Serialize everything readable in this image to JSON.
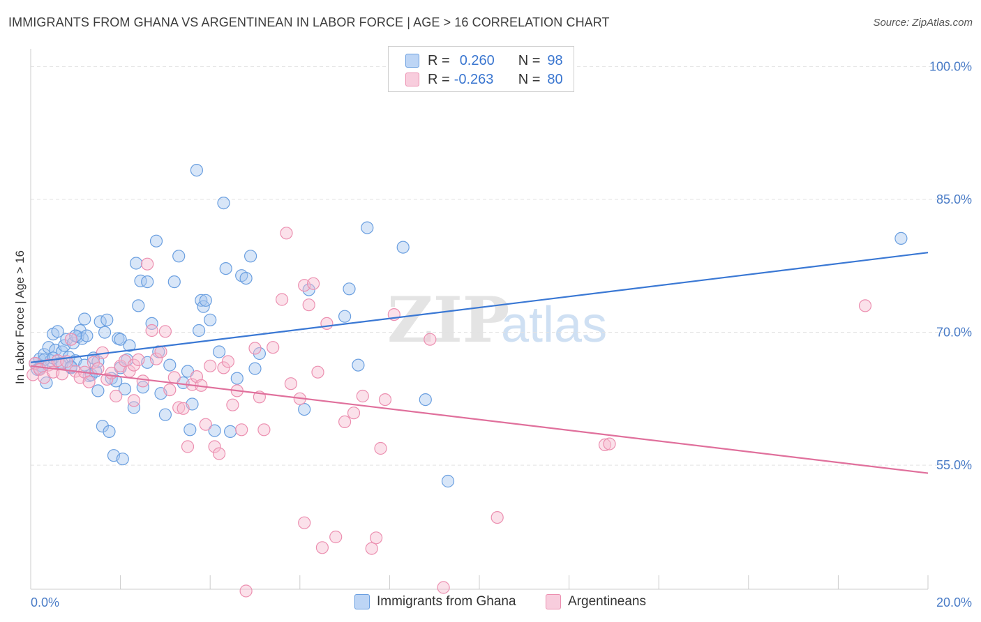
{
  "header": {
    "title": "IMMIGRANTS FROM GHANA VS ARGENTINEAN IN LABOR FORCE | AGE > 16 CORRELATION CHART",
    "source": "Source: ZipAtlas.com"
  },
  "legend": {
    "rows": [
      {
        "r_label": "R =",
        "r_value": "0.260",
        "n_label": "N =",
        "n_value": "98"
      },
      {
        "r_label": "R =",
        "r_value": "-0.263",
        "n_label": "N =",
        "n_value": "80"
      }
    ]
  },
  "bottom_legend": [
    "Immigrants from Ghana",
    "Argentineans"
  ],
  "watermark": {
    "zip": "ZIP",
    "atlas": "atlas"
  },
  "colors": {
    "blue_fill": "#a9c8f0",
    "blue_stroke": "#6a9fe0",
    "blue_line": "#3a78d4",
    "pink_fill": "#f6bcd0",
    "pink_stroke": "#ec8fb0",
    "pink_line": "#e0709c",
    "tick_text": "#4a7cc7",
    "grid": "#e3e3e3"
  },
  "chart_data": {
    "type": "scatter",
    "title": "IMMIGRANTS FROM GHANA VS ARGENTINEAN IN LABOR FORCE | AGE > 16 CORRELATION CHART",
    "xlabel": "",
    "ylabel": "In Labor Force | Age > 16",
    "xlim": [
      0,
      20
    ],
    "ylim": [
      41,
      102
    ],
    "x_tick_labels": [
      "0.0%",
      "20.0%"
    ],
    "y_ticks": [
      55,
      70,
      85,
      100
    ],
    "y_tick_labels": [
      "55.0%",
      "70.0%",
      "85.0%",
      "100.0%"
    ],
    "grid": true,
    "legend_position": "top-center",
    "series": [
      {
        "name": "Immigrants from Ghana",
        "r": 0.26,
        "n": 98,
        "trend": {
          "x": [
            0,
            20
          ],
          "y": [
            66.6,
            79.0
          ]
        },
        "points": [
          [
            0.1,
            66.5
          ],
          [
            0.15,
            65.8
          ],
          [
            0.2,
            67.0
          ],
          [
            0.25,
            66.2
          ],
          [
            0.3,
            67.5
          ],
          [
            0.35,
            64.3
          ],
          [
            0.4,
            68.3
          ],
          [
            0.45,
            66.8
          ],
          [
            0.5,
            69.8
          ],
          [
            0.55,
            68.0
          ],
          [
            0.6,
            70.1
          ],
          [
            0.65,
            66.5
          ],
          [
            0.7,
            67.8
          ],
          [
            0.75,
            68.5
          ],
          [
            0.8,
            69.2
          ],
          [
            0.85,
            67.2
          ],
          [
            0.9,
            66.0
          ],
          [
            0.95,
            68.8
          ],
          [
            1.0,
            66.8
          ],
          [
            1.05,
            69.5
          ],
          [
            1.1,
            70.2
          ],
          [
            1.15,
            69.3
          ],
          [
            1.2,
            71.5
          ],
          [
            1.25,
            69.6
          ],
          [
            1.3,
            65.1
          ],
          [
            1.35,
            65.2
          ],
          [
            1.4,
            67.1
          ],
          [
            1.45,
            65.6
          ],
          [
            1.5,
            63.4
          ],
          [
            1.55,
            71.2
          ],
          [
            1.6,
            59.4
          ],
          [
            1.65,
            70.0
          ],
          [
            1.7,
            71.4
          ],
          [
            1.75,
            58.8
          ],
          [
            1.8,
            64.8
          ],
          [
            1.85,
            56.1
          ],
          [
            1.9,
            64.5
          ],
          [
            1.95,
            69.3
          ],
          [
            2.0,
            69.2
          ],
          [
            2.05,
            55.7
          ],
          [
            2.1,
            63.6
          ],
          [
            2.15,
            66.9
          ],
          [
            2.2,
            68.5
          ],
          [
            2.3,
            61.5
          ],
          [
            2.35,
            77.8
          ],
          [
            2.4,
            73.0
          ],
          [
            2.45,
            75.8
          ],
          [
            2.5,
            63.8
          ],
          [
            2.6,
            75.7
          ],
          [
            2.7,
            71.0
          ],
          [
            2.8,
            80.3
          ],
          [
            2.85,
            67.8
          ],
          [
            2.9,
            63.1
          ],
          [
            3.0,
            60.7
          ],
          [
            3.1,
            66.3
          ],
          [
            3.2,
            75.7
          ],
          [
            3.3,
            78.6
          ],
          [
            3.4,
            64.3
          ],
          [
            3.5,
            65.6
          ],
          [
            3.55,
            59.0
          ],
          [
            3.6,
            61.9
          ],
          [
            3.7,
            88.3
          ],
          [
            3.75,
            70.2
          ],
          [
            3.8,
            73.6
          ],
          [
            3.85,
            72.9
          ],
          [
            3.9,
            73.6
          ],
          [
            4.0,
            71.4
          ],
          [
            4.1,
            58.9
          ],
          [
            4.2,
            67.8
          ],
          [
            4.3,
            84.6
          ],
          [
            4.35,
            77.2
          ],
          [
            4.45,
            58.8
          ],
          [
            4.6,
            64.8
          ],
          [
            4.7,
            76.4
          ],
          [
            4.8,
            76.1
          ],
          [
            4.9,
            78.6
          ],
          [
            5.0,
            65.9
          ],
          [
            5.1,
            67.6
          ],
          [
            6.1,
            61.3
          ],
          [
            6.2,
            74.8
          ],
          [
            7.0,
            71.8
          ],
          [
            7.1,
            74.9
          ],
          [
            7.3,
            66.3
          ],
          [
            7.5,
            81.8
          ],
          [
            8.3,
            79.6
          ],
          [
            8.8,
            62.4
          ],
          [
            9.3,
            53.2
          ],
          [
            19.4,
            80.6
          ],
          [
            0.3,
            66.9
          ],
          [
            0.5,
            67.1
          ],
          [
            1.0,
            69.6
          ],
          [
            1.5,
            66.7
          ],
          [
            2.0,
            66.0
          ],
          [
            2.6,
            66.6
          ],
          [
            0.2,
            65.9
          ],
          [
            0.7,
            66.5
          ],
          [
            1.2,
            66.3
          ],
          [
            0.9,
            66.1
          ]
        ]
      },
      {
        "name": "Argentineans",
        "r": -0.263,
        "n": 80,
        "trend": {
          "x": [
            0,
            20
          ],
          "y": [
            66.2,
            54.1
          ]
        },
        "points": [
          [
            0.05,
            65.2
          ],
          [
            0.1,
            66.5
          ],
          [
            0.2,
            65.8
          ],
          [
            0.3,
            64.9
          ],
          [
            0.4,
            66.3
          ],
          [
            0.5,
            65.5
          ],
          [
            0.6,
            66.8
          ],
          [
            0.7,
            65.3
          ],
          [
            0.8,
            66.7
          ],
          [
            0.9,
            69.2
          ],
          [
            1.0,
            65.6
          ],
          [
            1.1,
            64.9
          ],
          [
            1.2,
            65.5
          ],
          [
            1.3,
            64.4
          ],
          [
            1.4,
            66.6
          ],
          [
            1.5,
            65.9
          ],
          [
            1.6,
            67.7
          ],
          [
            1.7,
            64.7
          ],
          [
            1.8,
            65.4
          ],
          [
            1.9,
            62.8
          ],
          [
            2.0,
            66.2
          ],
          [
            2.1,
            66.8
          ],
          [
            2.2,
            65.6
          ],
          [
            2.3,
            66.3
          ],
          [
            2.4,
            66.9
          ],
          [
            2.5,
            64.5
          ],
          [
            2.6,
            77.7
          ],
          [
            2.7,
            70.2
          ],
          [
            2.8,
            67.0
          ],
          [
            2.9,
            67.8
          ],
          [
            3.0,
            70.1
          ],
          [
            3.1,
            63.5
          ],
          [
            3.2,
            64.9
          ],
          [
            3.3,
            61.5
          ],
          [
            3.4,
            61.4
          ],
          [
            3.5,
            57.1
          ],
          [
            3.6,
            64.1
          ],
          [
            3.7,
            65.0
          ],
          [
            3.8,
            64.0
          ],
          [
            3.9,
            59.6
          ],
          [
            4.0,
            66.2
          ],
          [
            4.1,
            57.1
          ],
          [
            4.2,
            56.3
          ],
          [
            4.3,
            66.0
          ],
          [
            4.4,
            66.7
          ],
          [
            4.5,
            61.8
          ],
          [
            4.6,
            63.4
          ],
          [
            4.7,
            59.0
          ],
          [
            4.8,
            40.8
          ],
          [
            5.0,
            68.2
          ],
          [
            5.2,
            59.0
          ],
          [
            5.4,
            68.3
          ],
          [
            5.6,
            73.7
          ],
          [
            5.7,
            81.2
          ],
          [
            5.8,
            64.2
          ],
          [
            6.1,
            75.3
          ],
          [
            6.2,
            73.1
          ],
          [
            6.3,
            75.5
          ],
          [
            6.4,
            65.5
          ],
          [
            6.5,
            45.7
          ],
          [
            6.6,
            71.0
          ],
          [
            6.8,
            46.9
          ],
          [
            7.0,
            59.9
          ],
          [
            7.2,
            60.9
          ],
          [
            7.4,
            62.8
          ],
          [
            7.6,
            45.6
          ],
          [
            7.7,
            46.8
          ],
          [
            7.8,
            56.9
          ],
          [
            7.9,
            62.4
          ],
          [
            8.1,
            72.0
          ],
          [
            8.9,
            69.2
          ],
          [
            9.2,
            41.2
          ],
          [
            10.4,
            49.1
          ],
          [
            12.8,
            57.3
          ],
          [
            12.9,
            57.4
          ],
          [
            18.6,
            73.0
          ],
          [
            6.0,
            62.5
          ],
          [
            5.1,
            62.7
          ],
          [
            2.3,
            62.3
          ],
          [
            6.1,
            48.5
          ]
        ]
      }
    ]
  }
}
